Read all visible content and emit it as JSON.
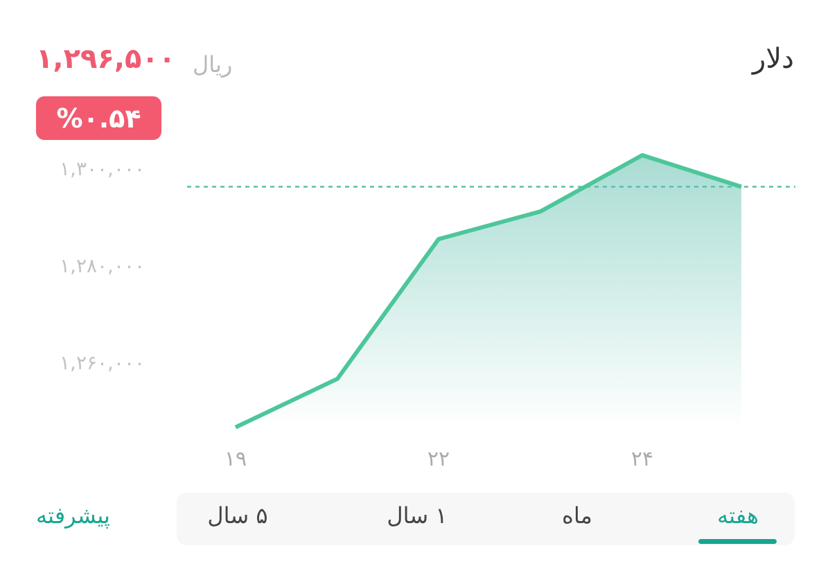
{
  "header": {
    "title": "دلار",
    "price": "۱,۲۹۶,۵۰۰",
    "unit": "ریال",
    "change": "%۰.۵۴"
  },
  "colors": {
    "price": "#ef5b72",
    "badge": "#f35a70",
    "line": "#4cc69a",
    "accent": "#17a590"
  },
  "chart_data": {
    "type": "area",
    "x": [
      "19",
      "20",
      "22",
      "23",
      "24",
      "25"
    ],
    "xtick_labels": [
      "۱۹",
      "۲۲",
      "۲۴"
    ],
    "values": [
      1246900,
      1256900,
      1285700,
      1291400,
      1303000,
      1296500
    ],
    "ytick_labels": [
      "۱,۳۰۰,۰۰۰",
      "۱,۲۸۰,۰۰۰",
      "۱,۲۶۰,۰۰۰"
    ],
    "yticks": [
      1300000,
      1280000,
      1260000
    ],
    "reference_line": 1296500,
    "grid": false
  },
  "tabs": [
    {
      "label": "هفته",
      "active": true
    },
    {
      "label": "ماه",
      "active": false
    },
    {
      "label": "۱ سال",
      "active": false
    },
    {
      "label": "۵ سال",
      "active": false
    }
  ],
  "advanced_label": "پیشرفته"
}
